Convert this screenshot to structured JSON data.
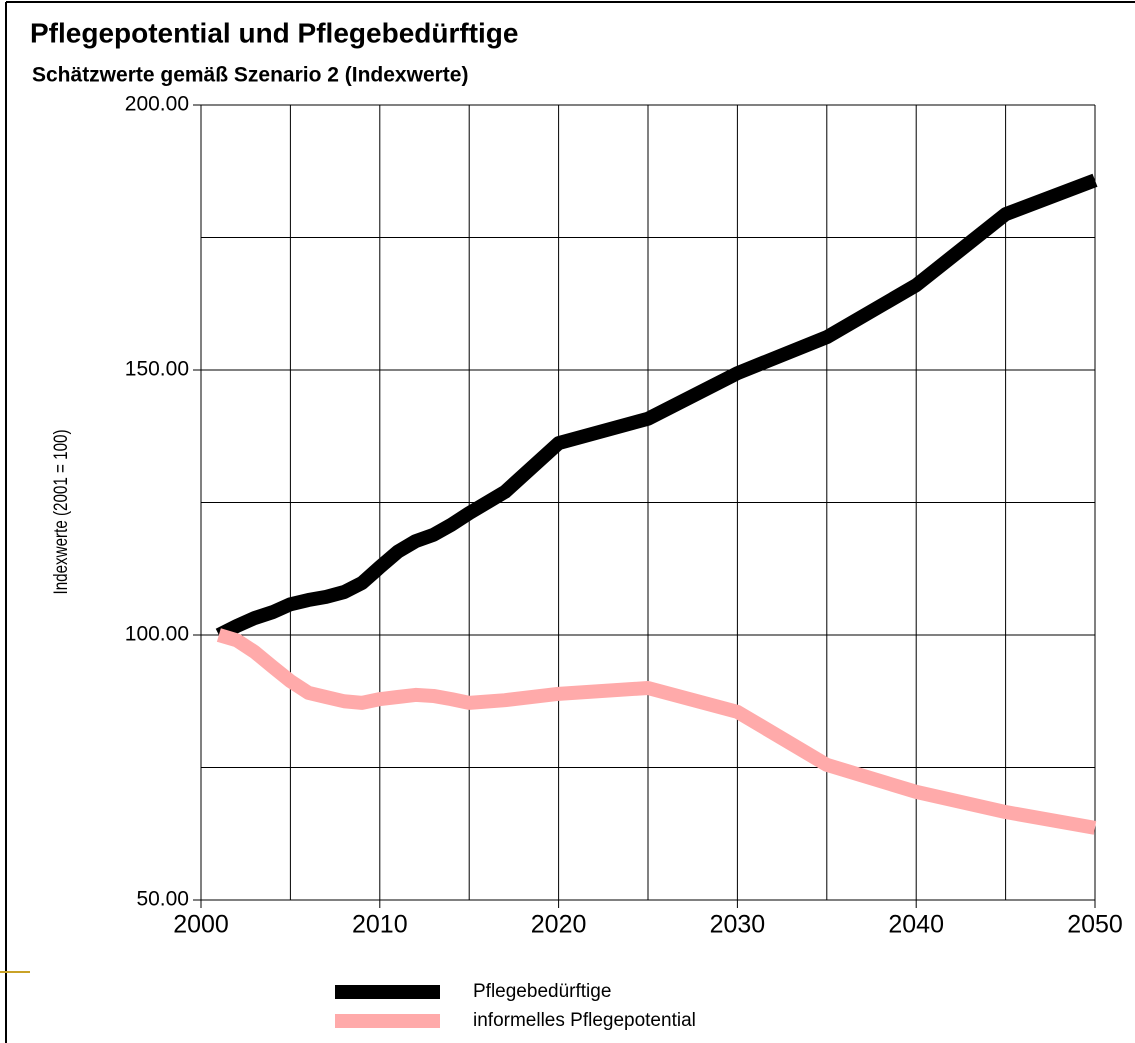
{
  "chart_data": {
    "type": "line",
    "title": "Pflegepotential und Pflegebedürftige",
    "subtitle": "Schätzwerte gemäß Szenario 2 (Indexwerte)",
    "y_label": "Indexwerte (2001 = 100)",
    "x": [
      2001,
      2002,
      2003,
      2004,
      2005,
      2006,
      2007,
      2008,
      2009,
      2010,
      2011,
      2012,
      2013,
      2014,
      2015,
      2017,
      2020,
      2025,
      2030,
      2035,
      2040,
      2045,
      2050
    ],
    "series": [
      {
        "name": "Pflegebedürftige",
        "color": "#000000",
        "values": [
          100,
          101.7,
          103.2,
          104.3,
          105.8,
          106.6,
          107.2,
          108.1,
          109.8,
          112.8,
          115.7,
          117.7,
          118.9,
          120.8,
          123,
          127,
          136.2,
          140.8,
          149.4,
          156.2,
          166,
          179.4,
          185.8
        ]
      },
      {
        "name": "informelles Pflegepotential",
        "color": "#ffaaaa",
        "values": [
          100,
          99,
          96.8,
          94,
          91.3,
          89.1,
          88.3,
          87.5,
          87.2,
          87.9,
          88.3,
          88.7,
          88.5,
          87.9,
          87.2,
          87.7,
          88.9,
          90,
          85.5,
          75.5,
          70.4,
          66.6,
          63.6
        ]
      }
    ],
    "xlim": [
      2000,
      2050
    ],
    "xticks": [
      2000,
      2010,
      2020,
      2030,
      2040,
      2050
    ],
    "xminor": [
      2005,
      2015,
      2025,
      2035,
      2045
    ],
    "ylim": [
      50,
      200
    ],
    "yticks": [
      {
        "value": 50,
        "label": "50.00"
      },
      {
        "value": 100,
        "label": "100.00"
      },
      {
        "value": 150,
        "label": "150.00"
      },
      {
        "value": 200,
        "label": "200.00"
      }
    ],
    "yminor": [
      75,
      125,
      175
    ],
    "grid": true
  }
}
